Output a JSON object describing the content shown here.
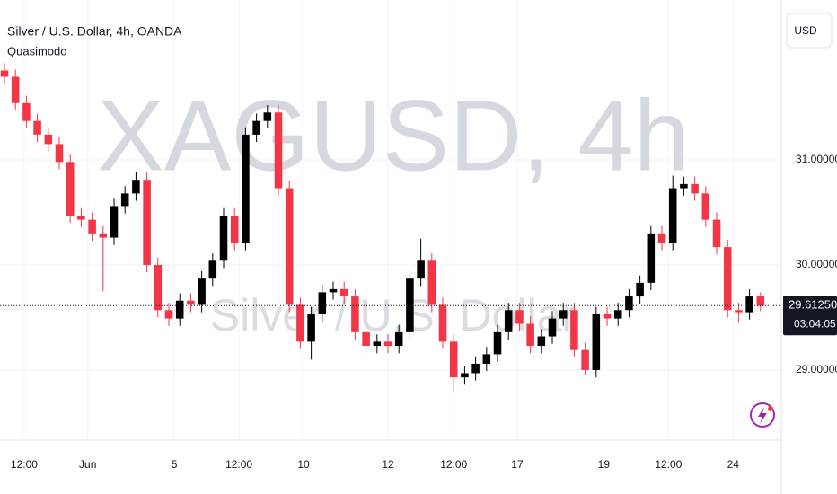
{
  "header": {
    "title": "Silver / U.S. Dollar, 4h, OANDA",
    "indicator": "Quasimodo",
    "currency_button": "USD"
  },
  "watermark": {
    "symbol": "XAGUSD, 4h",
    "name": "Silver / U.S. Dollar"
  },
  "chart_data": {
    "type": "candlestick",
    "up_color": "#000000",
    "down_color": "#f23645",
    "grid": true,
    "open": [
      31.85,
      31.79,
      31.54,
      31.37,
      31.24,
      31.15,
      30.98,
      30.47,
      30.43,
      30.3,
      30.26,
      30.56,
      30.68,
      30.81,
      30.0,
      29.57,
      29.49,
      29.66,
      29.62,
      29.87,
      30.04,
      30.47,
      30.21,
      31.24,
      31.37,
      31.45,
      30.73,
      29.62,
      29.27,
      29.53,
      29.74,
      29.77,
      29.7,
      29.36,
      29.23,
      29.27,
      29.23,
      29.36,
      29.87,
      30.04,
      29.62,
      29.27,
      28.93,
      28.97,
      29.06,
      29.15,
      29.36,
      29.57,
      29.44,
      29.23,
      29.32,
      29.49,
      29.57,
      29.19,
      29.0,
      29.53,
      29.49,
      29.57,
      29.7,
      29.83,
      30.3,
      30.21,
      30.73,
      30.77,
      30.68,
      30.43,
      30.17,
      29.57,
      29.55,
      29.7
    ],
    "high": [
      31.92,
      31.86,
      31.61,
      31.44,
      31.31,
      31.22,
      31.05,
      30.54,
      30.5,
      30.37,
      30.63,
      30.75,
      30.88,
      30.88,
      30.07,
      29.64,
      29.73,
      29.73,
      29.94,
      30.11,
      30.54,
      30.54,
      31.31,
      31.44,
      31.52,
      31.52,
      30.8,
      29.69,
      29.6,
      29.81,
      29.84,
      29.84,
      29.77,
      29.43,
      29.34,
      29.34,
      29.43,
      29.94,
      30.25,
      30.11,
      29.69,
      29.34,
      29.04,
      29.13,
      29.22,
      29.43,
      29.64,
      29.64,
      29.51,
      29.39,
      29.56,
      29.64,
      29.64,
      29.26,
      29.6,
      29.6,
      29.64,
      29.77,
      29.9,
      30.37,
      30.37,
      30.85,
      30.84,
      30.84,
      30.75,
      30.5,
      30.24,
      29.64,
      29.77,
      29.74
    ],
    "low": [
      31.72,
      31.47,
      31.3,
      31.17,
      31.08,
      30.91,
      30.4,
      30.36,
      30.23,
      29.75,
      30.19,
      30.49,
      30.61,
      29.93,
      29.5,
      29.42,
      29.42,
      29.55,
      29.55,
      29.8,
      29.97,
      30.14,
      30.14,
      31.17,
      31.3,
      30.66,
      29.55,
      29.2,
      29.1,
      29.46,
      29.67,
      29.63,
      29.29,
      29.16,
      29.16,
      29.16,
      29.16,
      29.29,
      29.8,
      29.55,
      29.2,
      28.8,
      28.86,
      28.9,
      28.99,
      29.08,
      29.29,
      29.37,
      29.16,
      29.16,
      29.25,
      29.42,
      29.12,
      28.95,
      28.93,
      29.42,
      29.42,
      29.5,
      29.63,
      29.76,
      30.14,
      30.14,
      30.66,
      30.61,
      30.36,
      30.1,
      29.5,
      29.45,
      29.48,
      29.56
    ],
    "close": [
      31.79,
      31.54,
      31.37,
      31.24,
      31.15,
      30.98,
      30.47,
      30.43,
      30.3,
      30.26,
      30.56,
      30.68,
      30.81,
      30.0,
      29.57,
      29.49,
      29.66,
      29.62,
      29.87,
      30.04,
      30.47,
      30.21,
      31.24,
      31.37,
      31.45,
      30.73,
      29.62,
      29.27,
      29.53,
      29.74,
      29.77,
      29.7,
      29.36,
      29.23,
      29.27,
      29.23,
      29.36,
      29.87,
      30.04,
      29.62,
      29.27,
      28.93,
      28.97,
      29.06,
      29.15,
      29.36,
      29.57,
      29.44,
      29.23,
      29.32,
      29.49,
      29.57,
      29.19,
      29.0,
      29.53,
      29.49,
      29.57,
      29.7,
      29.83,
      30.3,
      30.21,
      30.73,
      30.77,
      30.68,
      30.43,
      30.17,
      29.57,
      29.55,
      29.7,
      29.61
    ],
    "xlim": [
      -0.41,
      70.9
    ],
    "xticks": [
      {
        "value": 1.8,
        "label": "12:00"
      },
      {
        "value": 7.6,
        "label": "Jun"
      },
      {
        "value": 15.5,
        "label": "5"
      },
      {
        "value": 21.4,
        "label": "12:00"
      },
      {
        "value": 27.3,
        "label": "10"
      },
      {
        "value": 35,
        "label": "12"
      },
      {
        "value": 41,
        "label": "12:00"
      },
      {
        "value": 46.8,
        "label": "17"
      },
      {
        "value": 54.7,
        "label": "19"
      },
      {
        "value": 60.6,
        "label": "12:00"
      },
      {
        "value": 66.5,
        "label": "24"
      }
    ],
    "ylim": [
      28.333,
      32.521
    ],
    "yticks": [
      {
        "value": 29,
        "label": "29.00000"
      },
      {
        "value": 30,
        "label": "30.00000"
      },
      {
        "value": 31,
        "label": "31.00000"
      }
    ],
    "last_price": {
      "value": 29.6125,
      "label": "29.61250"
    },
    "countdown": "03:04:05"
  }
}
